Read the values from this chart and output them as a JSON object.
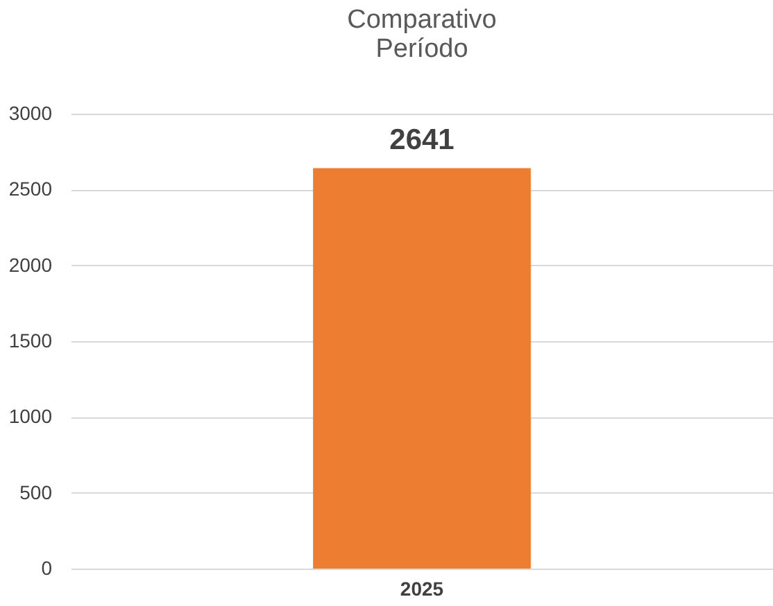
{
  "chart_data": {
    "type": "bar",
    "title": "Comparativo\nPeríodo",
    "categories": [
      "2025"
    ],
    "series": [
      {
        "color": "#ed7d31",
        "values": [
          2641
        ]
      }
    ],
    "ylim": [
      0,
      3000
    ],
    "yticks": [
      0,
      500,
      1000,
      1500,
      2000,
      2500,
      3000
    ],
    "grid": "y",
    "data_labels": true,
    "legend": false
  }
}
